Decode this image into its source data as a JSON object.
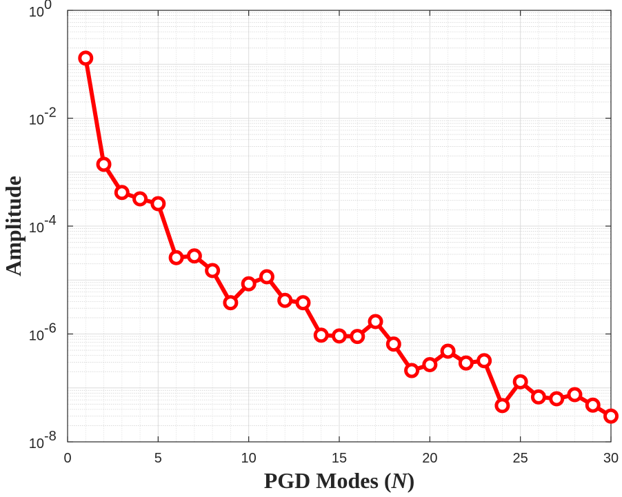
{
  "chart_data": {
    "type": "line",
    "title": "",
    "xlabel": "PGD Modes (N)",
    "xlabel_main": "PGD Modes (",
    "xlabel_var": "N",
    "xlabel_close": ")",
    "ylabel": "Amplitude",
    "xlim": [
      0,
      30
    ],
    "ylim": [
      1e-08,
      1
    ],
    "yscale": "log",
    "grid": true,
    "minor_grid": true,
    "legend": "none",
    "xticks": [
      0,
      5,
      10,
      15,
      20,
      25,
      30
    ],
    "xtick_labels": [
      "0",
      "5",
      "10",
      "15",
      "20",
      "25",
      "30"
    ],
    "yticks": [
      1e-08,
      1e-06,
      0.0001,
      0.01,
      1
    ],
    "ytick_labels": [
      {
        "base": "10",
        "exp": "-8"
      },
      {
        "base": "10",
        "exp": "-6"
      },
      {
        "base": "10",
        "exp": "-4"
      },
      {
        "base": "10",
        "exp": "-2"
      },
      {
        "base": "10",
        "exp": "0"
      }
    ],
    "series": [
      {
        "color": "#ff0000",
        "marker": "circle",
        "x": [
          1,
          2,
          3,
          4,
          5,
          6,
          7,
          8,
          9,
          10,
          11,
          12,
          13,
          14,
          15,
          16,
          17,
          18,
          19,
          20,
          21,
          22,
          23,
          24,
          25,
          26,
          27,
          28,
          29,
          30
        ],
        "y": [
          0.13,
          0.0014,
          0.00042,
          0.00032,
          0.00026,
          2.6e-05,
          2.8e-05,
          1.5e-05,
          3.8e-06,
          8.5e-06,
          1.15e-05,
          4.2e-06,
          3.8e-06,
          9.5e-07,
          9.2e-07,
          9e-07,
          1.7e-06,
          6.5e-07,
          2.1e-07,
          2.7e-07,
          4.8e-07,
          2.9e-07,
          3.2e-07,
          4.7e-08,
          1.3e-07,
          6.8e-08,
          6.3e-08,
          7.5e-08,
          4.8e-08,
          3e-08
        ]
      }
    ]
  }
}
